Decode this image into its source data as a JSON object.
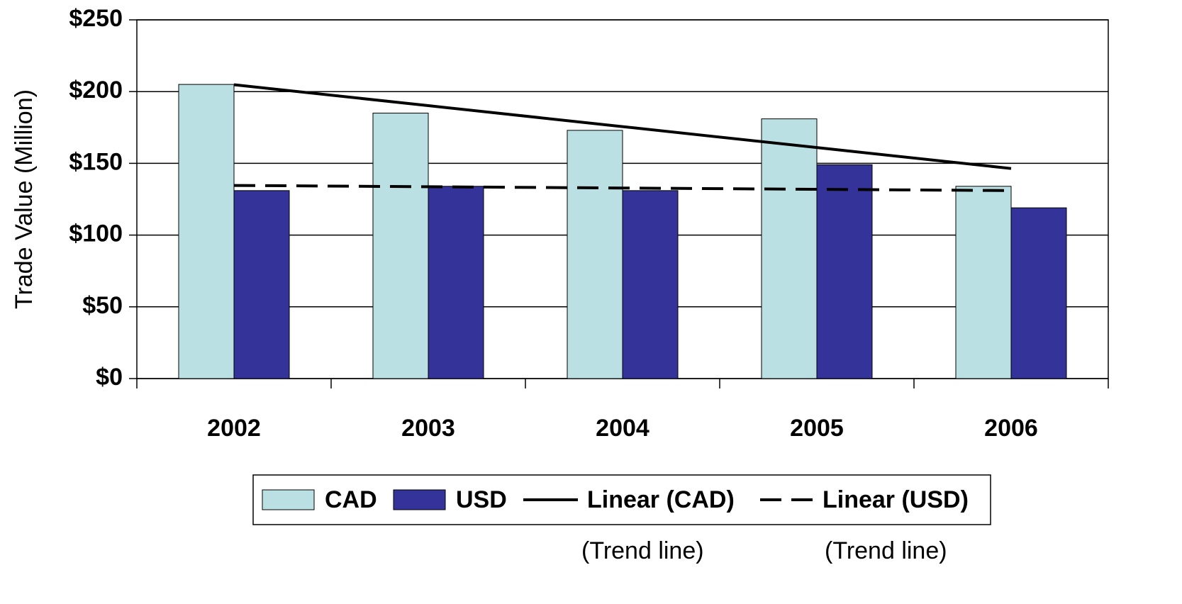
{
  "chart_data": {
    "type": "bar",
    "y_label": "Trade Value (Million)",
    "categories": [
      "2002",
      "2003",
      "2004",
      "2005",
      "2006"
    ],
    "series": [
      {
        "name": "CAD",
        "color": "#bbe0e3",
        "values": [
          205,
          185,
          173,
          181,
          134
        ]
      },
      {
        "name": "USD",
        "color": "#333399",
        "values": [
          131,
          134,
          131,
          149,
          119
        ]
      }
    ],
    "trend_lines": [
      {
        "name": "Linear (CAD)",
        "color": "#000000",
        "dash": "solid",
        "values": [
          204.8,
          190.2,
          175.6,
          161,
          146.4
        ]
      },
      {
        "name": "Linear (USD)",
        "color": "#000000",
        "dash": "dashed",
        "values": [
          134.6,
          133.7,
          132.8,
          131.9,
          131
        ]
      }
    ],
    "annotations": [
      "(Trend line)",
      "(Trend line)"
    ],
    "ylim": [
      0,
      250
    ],
    "yticks": [
      {
        "value": 0,
        "label": "$0"
      },
      {
        "value": 50,
        "label": "$50"
      },
      {
        "value": 100,
        "label": "$100"
      },
      {
        "value": 150,
        "label": "$150"
      },
      {
        "value": 200,
        "label": "$200"
      },
      {
        "value": 250,
        "label": "$250"
      }
    ],
    "grid": true,
    "legend": "bottom"
  }
}
